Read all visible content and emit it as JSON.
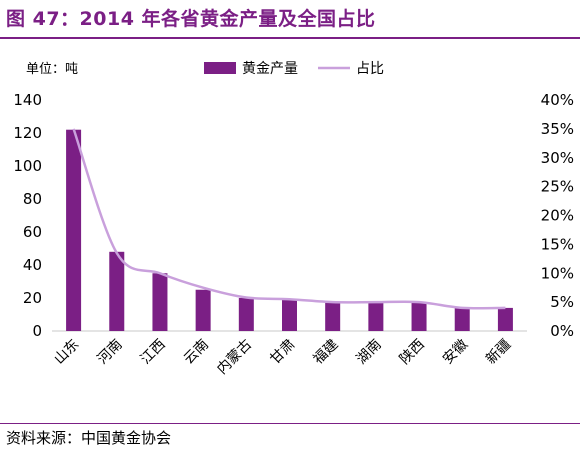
{
  "header": {
    "title": "图 47：2014 年各省黄金产量及全国占比"
  },
  "chart_data": {
    "type": "bar",
    "unit_label": "单位：吨",
    "categories": [
      "山东",
      "河南",
      "江西",
      "云南",
      "内蒙古",
      "甘肃",
      "福建",
      "湖南",
      "陕西",
      "安徽",
      "新疆"
    ],
    "series": [
      {
        "name": "黄金产量",
        "type": "bar",
        "axis": "left",
        "values": [
          122,
          48,
          35,
          25,
          20,
          19,
          17,
          17,
          17,
          14,
          14
        ]
      },
      {
        "name": "占比",
        "type": "line",
        "axis": "right",
        "values": [
          0.35,
          0.135,
          0.1,
          0.075,
          0.058,
          0.055,
          0.05,
          0.05,
          0.05,
          0.04,
          0.04
        ]
      }
    ],
    "y_left": {
      "min": 0,
      "max": 140,
      "ticks": [
        "0",
        "20",
        "40",
        "60",
        "80",
        "100",
        "120",
        "140"
      ]
    },
    "y_right": {
      "min": 0,
      "max": 0.4,
      "ticks": [
        "0%",
        "5%",
        "10%",
        "15%",
        "20%",
        "25%",
        "30%",
        "35%",
        "40%"
      ]
    },
    "grid": false,
    "legend_position": "top-center",
    "colors": {
      "bar": "#7b1f85",
      "line": "#c9a0dc",
      "title": "#7b1f85"
    }
  },
  "footer": {
    "source": "资料来源：中国黄金协会"
  }
}
